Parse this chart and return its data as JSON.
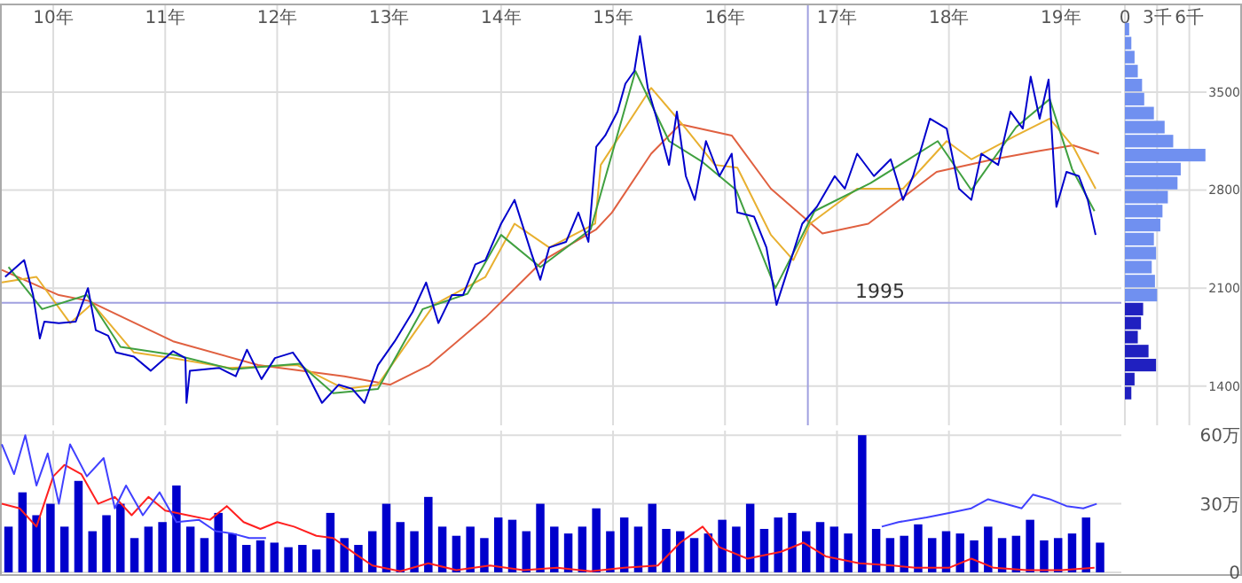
{
  "chart_data": [
    {
      "type": "line",
      "xlim": [
        9.54,
        19.54
      ],
      "ylim": [
        1120,
        4120
      ],
      "xticks": [
        {
          "value": 10,
          "label": "10年"
        },
        {
          "value": 11,
          "label": "11年"
        },
        {
          "value": 12,
          "label": "12年"
        },
        {
          "value": 13,
          "label": "13年"
        },
        {
          "value": 14,
          "label": "14年"
        },
        {
          "value": 15,
          "label": "15年"
        },
        {
          "value": 16,
          "label": "16年"
        },
        {
          "value": 17,
          "label": "17年"
        },
        {
          "value": 18,
          "label": "18年"
        },
        {
          "value": 19,
          "label": "19年"
        }
      ],
      "yticks": [
        1400,
        2100,
        2800,
        3500
      ],
      "grid": true,
      "ref_lines": [
        {
          "axis": "y",
          "value": 1995,
          "label": "1995",
          "color": "#a0a0e0"
        },
        {
          "axis": "x",
          "value": 16.74,
          "color": "#a0a0e0"
        }
      ],
      "series": [
        {
          "color": "#e06040",
          "x": [
            9.54,
            10.05,
            10.31,
            11.07,
            11.83,
            12.6,
            13.01,
            13.36,
            13.86,
            14.38,
            14.85,
            14.99,
            15.34,
            15.6,
            16.06,
            16.41,
            16.87,
            17.28,
            17.89,
            18.4,
            18.81,
            19.11,
            19.34
          ],
          "values": [
            2230,
            2050,
            2010,
            1720,
            1550,
            1470,
            1410,
            1550,
            1890,
            2300,
            2520,
            2640,
            3060,
            3270,
            3190,
            2810,
            2490,
            2560,
            2930,
            3020,
            3080,
            3120,
            3060
          ]
        },
        {
          "color": "#e8b030",
          "x": [
            9.54,
            9.85,
            10.15,
            10.35,
            10.72,
            11.07,
            11.57,
            12.18,
            12.6,
            12.9,
            13.4,
            13.86,
            14.12,
            14.43,
            14.84,
            14.89,
            15.34,
            15.65,
            15.91,
            16.11,
            16.41,
            16.61,
            16.76,
            17.18,
            17.59,
            17.98,
            18.2,
            18.6,
            18.9,
            19.11,
            19.31
          ],
          "values": [
            2140,
            2180,
            1850,
            1990,
            1640,
            1600,
            1530,
            1550,
            1380,
            1410,
            1980,
            2180,
            2560,
            2390,
            2560,
            2980,
            3530,
            3240,
            2980,
            2960,
            2480,
            2300,
            2560,
            2810,
            2810,
            3150,
            3020,
            3190,
            3310,
            3110,
            2810
          ]
        },
        {
          "color": "#40a040",
          "x": [
            9.6,
            9.9,
            10.3,
            10.6,
            11.1,
            11.6,
            12.2,
            12.5,
            12.9,
            13.3,
            13.7,
            14.0,
            14.35,
            14.8,
            15.2,
            15.5,
            15.8,
            16.1,
            16.45,
            16.8,
            17.3,
            17.9,
            18.2,
            18.6,
            18.9,
            19.1,
            19.3
          ],
          "values": [
            2250,
            1950,
            2050,
            1680,
            1620,
            1520,
            1560,
            1350,
            1380,
            1950,
            2060,
            2480,
            2250,
            2520,
            3650,
            3150,
            3000,
            2800,
            2100,
            2650,
            2850,
            3150,
            2800,
            3250,
            3450,
            2950,
            2650
          ]
        },
        {
          "color": "#0000cc",
          "x": [
            9.57,
            9.74,
            9.82,
            9.88,
            9.92,
            10.05,
            10.2,
            10.31,
            10.38,
            10.49,
            10.56,
            10.72,
            10.87,
            11.07,
            11.18,
            11.19,
            11.22,
            11.48,
            11.63,
            11.73,
            11.86,
            11.98,
            12.14,
            12.24,
            12.4,
            12.55,
            12.67,
            12.78,
            12.9,
            13.05,
            13.21,
            13.33,
            13.44,
            13.56,
            13.66,
            13.77,
            13.86,
            14.0,
            14.12,
            14.27,
            14.35,
            14.43,
            14.58,
            14.69,
            14.78,
            14.85,
            14.93,
            15.04,
            15.11,
            15.19,
            15.24,
            15.31,
            15.39,
            15.5,
            15.57,
            15.65,
            15.73,
            15.83,
            15.95,
            16.06,
            16.11,
            16.26,
            16.37,
            16.46,
            16.56,
            16.69,
            16.82,
            16.98,
            17.07,
            17.18,
            17.33,
            17.48,
            17.59,
            17.68,
            17.83,
            17.98,
            18.09,
            18.2,
            18.29,
            18.44,
            18.55,
            18.66,
            18.73,
            18.81,
            18.89,
            18.96,
            19.05,
            19.16,
            19.24,
            19.31
          ],
          "values": [
            2180,
            2300,
            2050,
            1740,
            1860,
            1850,
            1860,
            2100,
            1800,
            1760,
            1640,
            1610,
            1510,
            1650,
            1600,
            1280,
            1510,
            1530,
            1470,
            1660,
            1450,
            1600,
            1640,
            1530,
            1280,
            1410,
            1380,
            1280,
            1550,
            1720,
            1930,
            2140,
            1850,
            2050,
            2050,
            2270,
            2300,
            2560,
            2730,
            2350,
            2160,
            2390,
            2430,
            2640,
            2430,
            3110,
            3190,
            3360,
            3560,
            3650,
            3900,
            3530,
            3310,
            2980,
            3360,
            2900,
            2730,
            3150,
            2900,
            3060,
            2640,
            2610,
            2390,
            1980,
            2230,
            2560,
            2680,
            2900,
            2810,
            3060,
            2900,
            3020,
            2730,
            2900,
            3310,
            3240,
            2810,
            2730,
            3060,
            2980,
            3360,
            3240,
            3610,
            3310,
            3590,
            2680,
            2930,
            2900,
            2730,
            2480
          ]
        }
      ]
    },
    {
      "type": "histogram",
      "orientation": "horizontal",
      "tick_labels": "x",
      "grid": true,
      "xlim": [
        0,
        7.6
      ],
      "ylim": [
        1120,
        4120
      ],
      "xticks": [
        0,
        {
          "value": 3,
          "label": "3千"
        },
        {
          "value": 6,
          "label": "6千"
        }
      ],
      "yticks": [
        1400,
        2100,
        2800,
        3500
      ],
      "bins": [
        1300,
        1400,
        1500,
        1600,
        1700,
        1800,
        1900,
        2000,
        2100,
        2200,
        2300,
        2400,
        2500,
        2600,
        2700,
        2800,
        2900,
        3000,
        3100,
        3200,
        3300,
        3400,
        3500,
        3600,
        3700,
        3800,
        3900,
        4000
      ],
      "values": [
        0.6,
        0.9,
        2.9,
        2.2,
        1.2,
        1.5,
        1.7,
        3.0,
        2.8,
        2.5,
        2.9,
        2.7,
        3.3,
        3.5,
        4.0,
        4.9,
        5.2,
        7.5,
        4.5,
        3.7,
        2.7,
        1.8,
        1.6,
        1.2,
        0.9,
        0.6,
        0.4
      ],
      "colors": [
        "#2020c0",
        "#2020c0",
        "#2020c0",
        "#2020c0",
        "#2020c0",
        "#2020c0",
        "#2020c0",
        "#7090f0",
        "#7090f0",
        "#7090f0",
        "#7090f0",
        "#7090f0",
        "#7090f0",
        "#7090f0",
        "#7090f0",
        "#7090f0",
        "#7090f0",
        "#7090f0",
        "#7090f0",
        "#7090f0",
        "#7090f0",
        "#7090f0",
        "#7090f0",
        "#7090f0",
        "#7090f0",
        "#7090f0",
        "#7090f0"
      ]
    },
    {
      "type": "bar",
      "tick_labels": "y",
      "grid": true,
      "xlim": [
        9.54,
        19.54
      ],
      "ylim": [
        0,
        62
      ],
      "xticks": [
        10,
        11,
        12,
        13,
        14,
        15,
        16,
        17,
        18,
        19
      ],
      "yticks": [
        0,
        {
          "value": 30,
          "label": "30万"
        },
        {
          "value": 60,
          "label": "60万"
        }
      ],
      "series": [
        {
          "color": "#0000cc",
          "x": [
            9.6,
            9.725,
            9.85,
            9.975,
            10.1,
            10.225,
            10.35,
            10.475,
            10.6,
            10.725,
            10.85,
            10.975,
            11.1,
            11.225,
            11.35,
            11.475,
            11.6,
            11.725,
            11.85,
            11.975,
            12.1,
            12.225,
            12.35,
            12.475,
            12.6,
            12.725,
            12.85,
            12.975,
            13.1,
            13.225,
            13.35,
            13.475,
            13.6,
            13.725,
            13.85,
            13.975,
            14.1,
            14.225,
            14.35,
            14.475,
            14.6,
            14.725,
            14.85,
            14.975,
            15.1,
            15.225,
            15.35,
            15.475,
            15.6,
            15.725,
            15.85,
            15.975,
            16.1,
            16.225,
            16.35,
            16.475,
            16.6,
            16.725,
            16.85,
            16.975,
            17.1,
            17.225,
            17.35,
            17.475,
            17.6,
            17.725,
            17.85,
            17.975,
            18.1,
            18.225,
            18.35,
            18.475,
            18.6,
            18.725,
            18.85,
            18.975,
            19.1,
            19.225,
            19.35
          ],
          "values": [
            20,
            35,
            25,
            30,
            20,
            40,
            18,
            25,
            30,
            15,
            20,
            22,
            38,
            20,
            15,
            26,
            17,
            12,
            14,
            13,
            11,
            12,
            10,
            26,
            15,
            12,
            18,
            30,
            22,
            18,
            33,
            20,
            16,
            20,
            15,
            24,
            23,
            18,
            30,
            20,
            17,
            20,
            28,
            18,
            24,
            20,
            30,
            19,
            18,
            15,
            17,
            23,
            20,
            30,
            19,
            24,
            26,
            18,
            22,
            20,
            17,
            60,
            19,
            15,
            16,
            21,
            15,
            18,
            17,
            14,
            20,
            15,
            16,
            23,
            14,
            15,
            17,
            24,
            13
          ]
        },
        {
          "type": "line",
          "color": "#ff2020",
          "x": [
            9.54,
            9.7,
            9.85,
            10.0,
            10.1,
            10.25,
            10.4,
            10.55,
            10.7,
            10.85,
            11.0,
            11.2,
            11.4,
            11.55,
            11.7,
            11.85,
            12.0,
            12.15,
            12.35,
            12.5,
            12.7,
            12.85,
            13.1,
            13.35,
            13.6,
            13.9,
            14.2,
            14.5,
            14.8,
            15.1,
            15.4,
            15.6,
            15.8,
            15.95,
            16.2,
            16.5,
            16.7,
            16.9,
            17.2,
            17.5,
            17.7,
            18.0,
            18.2,
            18.4,
            18.7,
            19.0,
            19.3
          ],
          "values": [
            30,
            28,
            20,
            42,
            47,
            43,
            30,
            33,
            25,
            33,
            27,
            25,
            23,
            29,
            22,
            19,
            22,
            20,
            16,
            15,
            8,
            3,
            0.5,
            4,
            1,
            3,
            1,
            2,
            0.5,
            2,
            3,
            13,
            20,
            11,
            6,
            9,
            13,
            7,
            4,
            3,
            2,
            2,
            6,
            2,
            1,
            1,
            2
          ]
        },
        {
          "type": "line",
          "color": "#4040ff",
          "x": [
            9.54,
            9.65,
            9.75,
            9.85,
            9.95,
            10.05,
            10.15,
            10.3,
            10.45,
            10.55,
            10.65,
            10.8,
            10.95,
            11.1,
            11.3,
            11.45,
            11.6,
            11.75,
            11.9,
            14.5,
            17.4,
            17.55,
            17.8,
            18.0,
            18.2,
            18.35,
            18.5,
            18.65,
            18.75,
            18.9,
            19.05,
            19.2,
            19.32
          ],
          "values": [
            56,
            43,
            60,
            38,
            52,
            30,
            56,
            42,
            50,
            28,
            38,
            25,
            35,
            22,
            23,
            18,
            17,
            15,
            15,
            null,
            20,
            22,
            24,
            26,
            28,
            32,
            30,
            28,
            34,
            32,
            29,
            28,
            30
          ]
        }
      ]
    }
  ]
}
